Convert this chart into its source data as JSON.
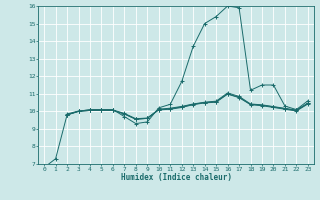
{
  "xlabel": "Humidex (Indice chaleur)",
  "ylabel": "",
  "bg_color": "#cde8e8",
  "grid_color": "#ffffff",
  "line_color": "#1a6b6b",
  "xlim": [
    -0.5,
    23.5
  ],
  "ylim": [
    7,
    16
  ],
  "xticks": [
    0,
    1,
    2,
    3,
    4,
    5,
    6,
    7,
    8,
    9,
    10,
    11,
    12,
    13,
    14,
    15,
    16,
    17,
    18,
    19,
    20,
    21,
    22,
    23
  ],
  "yticks": [
    7,
    8,
    9,
    10,
    11,
    12,
    13,
    14,
    15,
    16
  ],
  "lines": [
    {
      "x": [
        0,
        1,
        2,
        3,
        4,
        5,
        6,
        7,
        8,
        9,
        10,
        11,
        12,
        13,
        14,
        15,
        16,
        17,
        18,
        19,
        20,
        21,
        22,
        23
      ],
      "y": [
        6.8,
        7.3,
        9.8,
        10.0,
        10.1,
        10.1,
        10.1,
        9.7,
        9.3,
        9.4,
        10.2,
        10.4,
        11.7,
        13.7,
        15.0,
        15.4,
        16.0,
        15.9,
        11.2,
        11.5,
        11.5,
        10.3,
        10.1,
        10.6
      ]
    },
    {
      "x": [
        2,
        3,
        4,
        5,
        6,
        7,
        8,
        9,
        10,
        11,
        12,
        13,
        14,
        15,
        16,
        17,
        18,
        19,
        20,
        21,
        22,
        23
      ],
      "y": [
        9.8,
        10.0,
        10.05,
        10.05,
        10.05,
        9.85,
        9.55,
        9.6,
        10.1,
        10.15,
        10.25,
        10.4,
        10.5,
        10.55,
        11.0,
        10.8,
        10.4,
        10.35,
        10.25,
        10.15,
        10.05,
        10.45
      ]
    },
    {
      "x": [
        2,
        3,
        4,
        5,
        6,
        7,
        8,
        9,
        10,
        11,
        12,
        13,
        14,
        15,
        16,
        17,
        18,
        19,
        20,
        21,
        22,
        23
      ],
      "y": [
        9.8,
        10.0,
        10.05,
        10.05,
        10.05,
        9.85,
        9.55,
        9.6,
        10.12,
        10.18,
        10.28,
        10.42,
        10.52,
        10.58,
        11.05,
        10.85,
        10.42,
        10.37,
        10.27,
        10.17,
        10.07,
        10.47
      ]
    },
    {
      "x": [
        2,
        3,
        4,
        5,
        6,
        7,
        8,
        9,
        10,
        11,
        12,
        13,
        14,
        15,
        16,
        17,
        18,
        19,
        20,
        21,
        22,
        23
      ],
      "y": [
        9.85,
        10.02,
        10.08,
        10.08,
        10.08,
        9.88,
        9.58,
        9.62,
        10.08,
        10.12,
        10.22,
        10.38,
        10.48,
        10.52,
        10.98,
        10.78,
        10.38,
        10.32,
        10.22,
        10.12,
        10.02,
        10.42
      ]
    }
  ]
}
